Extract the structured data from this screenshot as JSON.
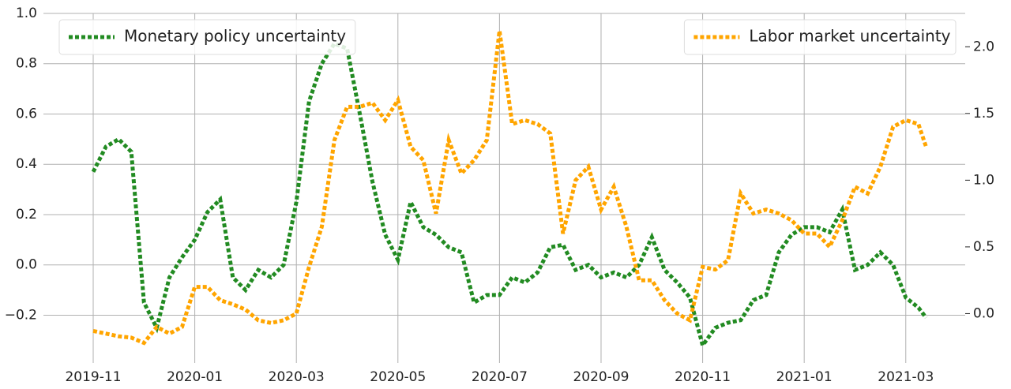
{
  "chart_data": {
    "type": "line",
    "x": [
      0,
      0.25,
      0.5,
      0.75,
      1,
      1.25,
      1.5,
      1.75,
      2,
      2.25,
      2.5,
      2.75,
      3,
      3.25,
      3.5,
      3.75,
      4,
      4.25,
      4.5,
      4.75,
      5,
      5.25,
      5.5,
      5.75,
      6,
      6.25,
      6.5,
      6.75,
      7,
      7.25,
      7.5,
      7.75,
      8,
      8.25,
      8.5,
      8.75,
      9,
      9.25,
      9.5,
      9.75,
      10,
      10.25,
      10.5,
      10.75,
      11,
      11.25,
      11.5,
      11.75,
      12,
      12.25,
      12.5,
      12.75,
      13,
      13.25,
      13.5,
      13.75,
      14,
      14.25,
      14.5,
      14.75,
      15,
      15.25,
      15.5,
      15.75,
      16,
      16.25,
      16.4
    ],
    "xlim": [
      -0.98,
      17.17
    ],
    "xticks": [
      {
        "value": 0,
        "label": "2019-11"
      },
      {
        "value": 2,
        "label": "2020-01"
      },
      {
        "value": 4,
        "label": "2020-03"
      },
      {
        "value": 6,
        "label": "2020-05"
      },
      {
        "value": 8,
        "label": "2020-07"
      },
      {
        "value": 10,
        "label": "2020-09"
      },
      {
        "value": 12,
        "label": "2020-11"
      },
      {
        "value": 14,
        "label": "2021-01"
      },
      {
        "value": 16,
        "label": "2021-03"
      }
    ],
    "ylim": [
      -0.39,
      1.0
    ],
    "yticks": [
      {
        "value": -0.2,
        "label": "−0.2"
      },
      {
        "value": 0,
        "label": "0.0"
      },
      {
        "value": 0.2,
        "label": "0.2"
      },
      {
        "value": 0.4,
        "label": "0.4"
      },
      {
        "value": 0.6,
        "label": "0.6"
      },
      {
        "value": 0.8,
        "label": "0.8"
      },
      {
        "value": 1.0,
        "label": "1.0"
      }
    ],
    "y2lim": [
      -0.37,
      2.25
    ],
    "y2ticks": [
      {
        "value": 0,
        "label": "0.0"
      },
      {
        "value": 0.5,
        "label": "0.5"
      },
      {
        "value": 1.0,
        "label": "1.0"
      },
      {
        "value": 1.5,
        "label": "1.5"
      },
      {
        "value": 2.0,
        "label": "2.0"
      }
    ],
    "grid": true,
    "series": [
      {
        "name": "Monetary policy uncertainty",
        "color": "#228b22",
        "axis": "y",
        "legend": "upper left",
        "values": [
          0.37,
          0.47,
          0.5,
          0.45,
          -0.15,
          -0.25,
          -0.05,
          0.03,
          0.1,
          0.21,
          0.26,
          -0.05,
          -0.1,
          -0.02,
          -0.05,
          0.0,
          0.25,
          0.65,
          0.8,
          0.88,
          0.86,
          0.6,
          0.33,
          0.12,
          0.02,
          0.25,
          0.15,
          0.12,
          0.07,
          0.05,
          -0.15,
          -0.12,
          -0.12,
          -0.05,
          -0.07,
          -0.03,
          0.07,
          0.08,
          -0.02,
          0.0,
          -0.05,
          -0.03,
          -0.05,
          0.0,
          0.11,
          -0.02,
          -0.07,
          -0.13,
          -0.32,
          -0.25,
          -0.23,
          -0.22,
          -0.14,
          -0.12,
          0.05,
          0.12,
          0.15,
          0.15,
          0.13,
          0.22,
          -0.02,
          0.0,
          0.05,
          0.0,
          -0.13,
          -0.17,
          -0.21
        ]
      },
      {
        "name": "Labor market uncertainty",
        "color": "#ffa500",
        "axis": "y2",
        "legend": "upper right",
        "values": [
          -0.13,
          -0.15,
          -0.17,
          -0.18,
          -0.22,
          -0.1,
          -0.15,
          -0.1,
          0.2,
          0.2,
          0.1,
          0.07,
          0.03,
          -0.05,
          -0.07,
          -0.05,
          0.0,
          0.35,
          0.65,
          1.3,
          1.55,
          1.55,
          1.58,
          1.45,
          1.6,
          1.25,
          1.15,
          0.75,
          1.3,
          1.05,
          1.15,
          1.3,
          2.12,
          1.42,
          1.45,
          1.42,
          1.35,
          0.6,
          1.0,
          1.1,
          0.78,
          0.95,
          0.65,
          0.25,
          0.25,
          0.1,
          0.0,
          -0.05,
          0.35,
          0.33,
          0.4,
          0.9,
          0.75,
          0.78,
          0.75,
          0.7,
          0.6,
          0.6,
          0.5,
          0.7,
          0.95,
          0.9,
          1.1,
          1.4,
          1.45,
          1.42,
          1.25
        ]
      }
    ]
  }
}
